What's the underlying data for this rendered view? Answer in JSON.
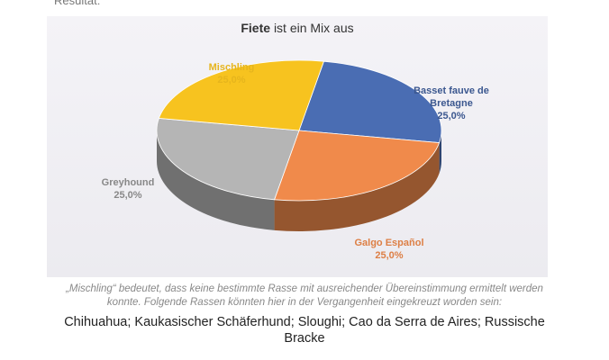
{
  "header": "Resultat:",
  "chart_data": {
    "type": "pie",
    "title": [
      "Fiete",
      "ist ein Mix aus"
    ],
    "series": [
      {
        "name": "Basset fauve de Bretagne",
        "color": "#4a6db3",
        "values": [
          25
        ],
        "value_labels": [
          "25,0%"
        ]
      },
      {
        "name": "Galgo Español",
        "color": "#f08a4b",
        "values": [
          25
        ],
        "value_labels": [
          "25,0%"
        ]
      },
      {
        "name": "Greyhound",
        "color": "#b5b5b5",
        "values": [
          25
        ],
        "value_labels": [
          "25,0%"
        ]
      },
      {
        "name": "Mischling",
        "color": "#f7c31f",
        "values": [
          25
        ],
        "value_labels": [
          "25,0%"
        ]
      }
    ]
  },
  "caption": "„Mischling“ bedeutet, dass keine bestimmte Rasse mit ausreichender Übereinstimmung ermittelt werden konnte. Folgende Rassen könnten hier in der Vergangenheit eingekreuzt worden sein:",
  "breeds": "Chihuahua; Kaukasischer Schäferhund; Sloughi; Cao da Serra de Aires; Russische Bracke"
}
